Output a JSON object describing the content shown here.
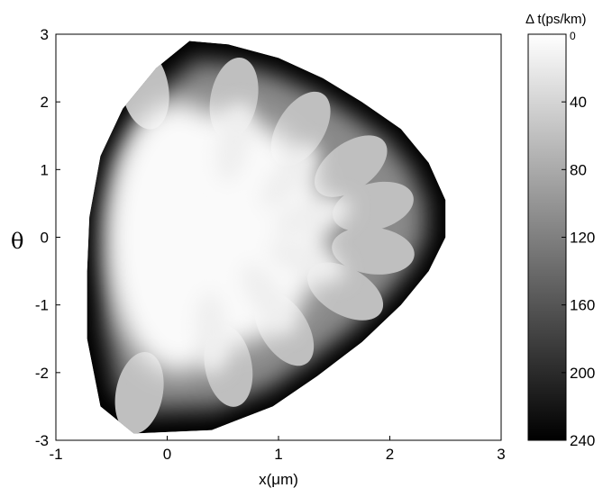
{
  "chart_data": {
    "type": "heatmap",
    "title": "",
    "xlabel": "x(μm)",
    "ylabel": "θ",
    "xlim": [
      -1,
      3
    ],
    "ylim": [
      -3,
      3
    ],
    "x_ticks": [
      "-1",
      "0",
      "1",
      "2",
      "3"
    ],
    "y_ticks": [
      "-3",
      "-2",
      "-1",
      "0",
      "1",
      "2",
      "3"
    ],
    "colormap": "gray (white = 0, black = 240)",
    "colorbar": {
      "title": "Δ t(ps/km)",
      "range": [
        0,
        240
      ],
      "ticks": [
        "0",
        "40",
        "80",
        "120",
        "160",
        "200",
        "240"
      ]
    },
    "region": {
      "description_values": "delay Δt in ps/km over (x, θ)",
      "boundary_points": [
        [
          0.2,
          2.9
        ],
        [
          0.55,
          2.85
        ],
        [
          1.0,
          2.65
        ],
        [
          1.4,
          2.35
        ],
        [
          1.75,
          2.0
        ],
        [
          2.1,
          1.6
        ],
        [
          2.35,
          1.1
        ],
        [
          2.5,
          0.55
        ],
        [
          2.5,
          0.0
        ],
        [
          2.35,
          -0.5
        ],
        [
          2.1,
          -1.0
        ],
        [
          1.75,
          -1.55
        ],
        [
          1.35,
          -2.05
        ],
        [
          0.95,
          -2.5
        ],
        [
          0.4,
          -2.85
        ],
        [
          -0.3,
          -2.9
        ],
        [
          -0.6,
          -2.5
        ],
        [
          -0.72,
          -1.5
        ],
        [
          -0.72,
          -0.5
        ],
        [
          -0.7,
          0.3
        ],
        [
          -0.6,
          1.2
        ],
        [
          -0.4,
          1.9
        ],
        [
          -0.1,
          2.5
        ]
      ],
      "core_value_ps_per_km": 5,
      "edge_value_ps_per_km": 240,
      "lobe_value_ps_per_km": 60,
      "lobes": [
        {
          "x": -0.2,
          "theta": 2.2
        },
        {
          "x": 0.6,
          "theta": 2.05
        },
        {
          "x": 1.2,
          "theta": 1.6
        },
        {
          "x": 1.65,
          "theta": 1.05
        },
        {
          "x": 1.85,
          "theta": 0.45
        },
        {
          "x": 1.85,
          "theta": -0.2
        },
        {
          "x": 1.6,
          "theta": -0.8
        },
        {
          "x": 1.05,
          "theta": -1.35
        },
        {
          "x": 0.55,
          "theta": -1.9
        },
        {
          "x": -0.25,
          "theta": -2.3
        }
      ]
    }
  }
}
